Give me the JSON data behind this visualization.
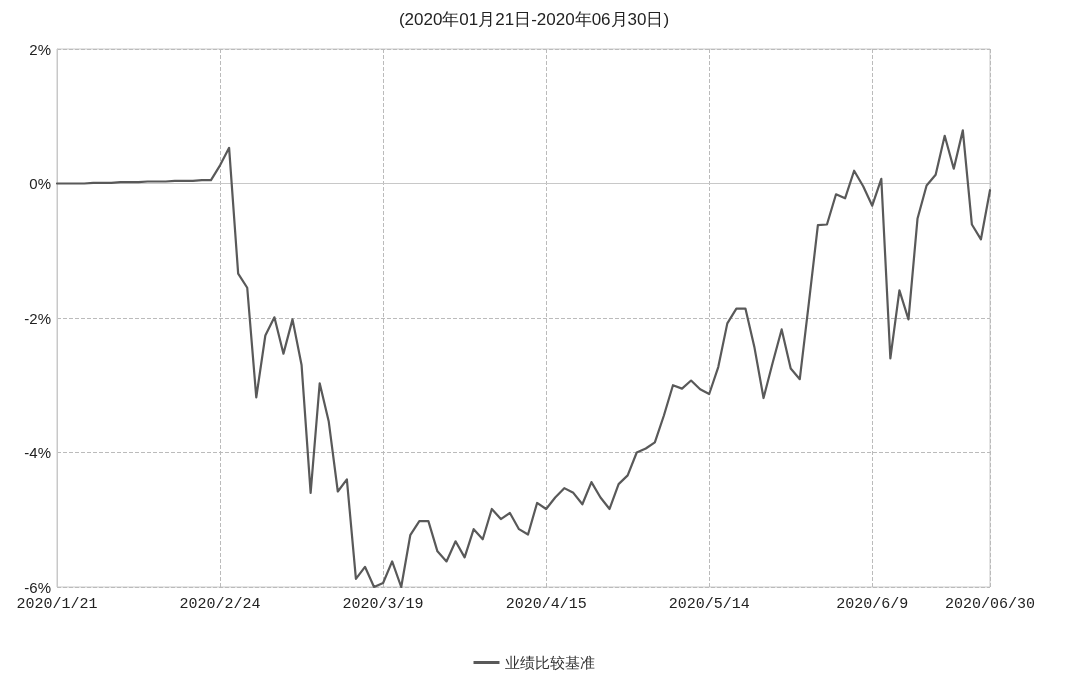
{
  "chart_data": {
    "type": "line",
    "title": "(2020年01月21日-2020年06月30日)",
    "categories": [
      "2020/1/21",
      null,
      null,
      null,
      null,
      null,
      null,
      null,
      null,
      null,
      null,
      null,
      null,
      null,
      null,
      null,
      null,
      null,
      "2020/2/24",
      null,
      null,
      null,
      null,
      null,
      null,
      null,
      null,
      null,
      null,
      null,
      null,
      null,
      null,
      null,
      null,
      null,
      "2020/3/19",
      null,
      null,
      null,
      null,
      null,
      null,
      null,
      null,
      null,
      null,
      null,
      null,
      null,
      null,
      null,
      null,
      null,
      "2020/4/15",
      null,
      null,
      null,
      null,
      null,
      null,
      null,
      null,
      null,
      null,
      null,
      null,
      null,
      null,
      null,
      null,
      null,
      "2020/5/14",
      null,
      null,
      null,
      null,
      null,
      null,
      null,
      null,
      null,
      null,
      null,
      null,
      null,
      null,
      null,
      null,
      null,
      "2020/6/9",
      null,
      null,
      null,
      null,
      null,
      null,
      null,
      null,
      null,
      null,
      null,
      null,
      "2020/06/30"
    ],
    "series": [
      {
        "name": "业绩比较基准",
        "color": "#595959",
        "values": [
          0,
          0,
          0,
          0,
          0.01,
          0.01,
          0.01,
          0.02,
          0.02,
          0.02,
          0.03,
          0.03,
          0.03,
          0.04,
          0.04,
          0.04,
          0.05,
          0.05,
          0.27,
          0.53,
          -1.34,
          -1.55,
          -3.18,
          -2.26,
          -1.99,
          -2.53,
          -2.02,
          -2.7,
          -4.6,
          -2.97,
          -3.54,
          -4.58,
          -4.4,
          -5.88,
          -5.7,
          -6.0,
          -5.94,
          -5.62,
          -6.0,
          -5.23,
          -5.02,
          -5.02,
          -5.47,
          -5.62,
          -5.32,
          -5.56,
          -5.14,
          -5.29,
          -4.84,
          -4.99,
          -4.9,
          -5.14,
          -5.22,
          -4.75,
          -4.84,
          -4.67,
          -4.53,
          -4.6,
          -4.77,
          -4.44,
          -4.67,
          -4.84,
          -4.47,
          -4.34,
          -4.0,
          -3.94,
          -3.85,
          -3.45,
          -3.0,
          -3.05,
          -2.93,
          -3.06,
          -3.13,
          -2.73,
          -2.08,
          -1.86,
          -1.86,
          -2.44,
          -3.19,
          -2.67,
          -2.17,
          -2.75,
          -2.91,
          -1.78,
          -0.62,
          -0.61,
          -0.16,
          -0.22,
          0.19,
          -0.04,
          -0.33,
          0.07,
          -2.6,
          -1.59,
          -2.02,
          -0.52,
          -0.03,
          0.13,
          0.71,
          0.22,
          0.79,
          -0.61,
          -0.83,
          -0.1
        ]
      }
    ],
    "ylim": [
      -6,
      2
    ],
    "yticks": [
      {
        "value": -6,
        "label": "-6%"
      },
      {
        "value": -4,
        "label": "-4%"
      },
      {
        "value": -2,
        "label": "-2%"
      },
      {
        "value": 0,
        "label": "0%"
      },
      {
        "value": 2,
        "label": "2%"
      }
    ],
    "grid": true,
    "legend": "bottom",
    "marker": "none",
    "line_style": "solid"
  }
}
